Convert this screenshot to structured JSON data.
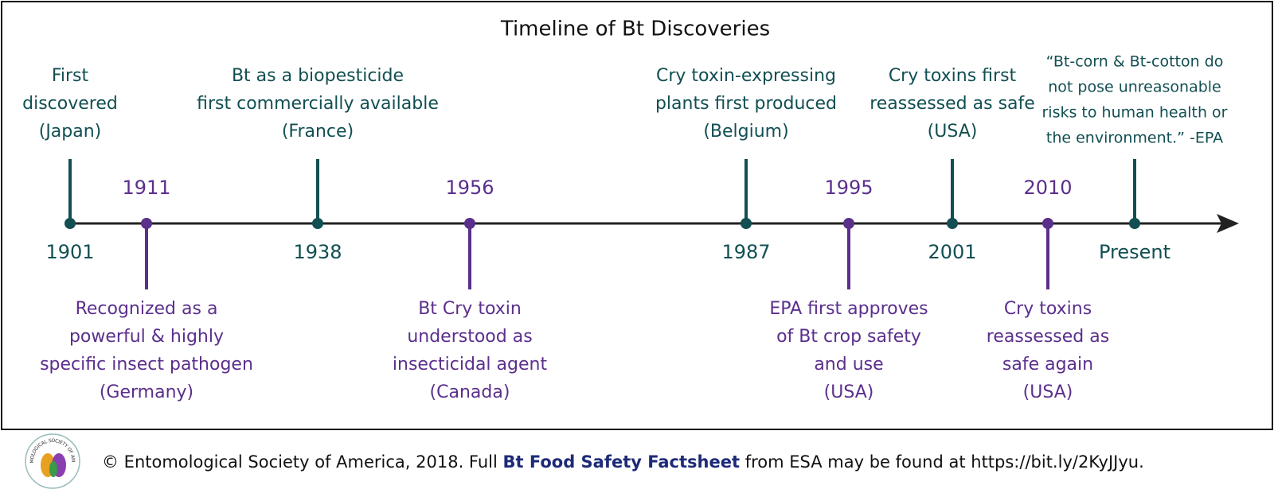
{
  "title": "Timeline of Bt Discoveries",
  "events": [
    {
      "year": "1901",
      "lines": [
        "First",
        "discovered",
        "(Japan)"
      ]
    },
    {
      "year": "1911",
      "lines": [
        "Recognized as a",
        "powerful & highly",
        "specific insect pathogen",
        "(Germany)"
      ]
    },
    {
      "year": "1938",
      "lines": [
        "Bt as a biopesticide",
        "first commercially available",
        "(France)"
      ]
    },
    {
      "year": "1956",
      "lines": [
        "Bt Cry toxin",
        "understood as",
        "insecticidal agent",
        "(Canada)"
      ]
    },
    {
      "year": "1987",
      "lines": [
        "Cry toxin-expressing",
        "plants first produced",
        "(Belgium)"
      ]
    },
    {
      "year": "1995",
      "lines": [
        "EPA first approves",
        "of Bt crop safety",
        "and use",
        "(USA)"
      ]
    },
    {
      "year": "2001",
      "lines": [
        "Cry toxins first",
        "reassessed as safe",
        "(USA)"
      ]
    },
    {
      "year": "2010",
      "lines": [
        "Cry toxins",
        "reassessed as",
        "safe again",
        "(USA)"
      ]
    },
    {
      "year": "Present",
      "lines": [
        "“Bt-corn & Bt-cotton do",
        "not pose unreasonable",
        "risks to human health or",
        "the environment.” -EPA"
      ]
    }
  ],
  "footer": {
    "logo_text": "ENTOMOLOGICAL SOCIETY OF AMERICA",
    "parts": [
      "© Entomological Society of America, 2018. Full ",
      "Bt Food Safety Factsheet",
      " from ESA may be found at https://bit.ly/2KyJJyu."
    ]
  }
}
